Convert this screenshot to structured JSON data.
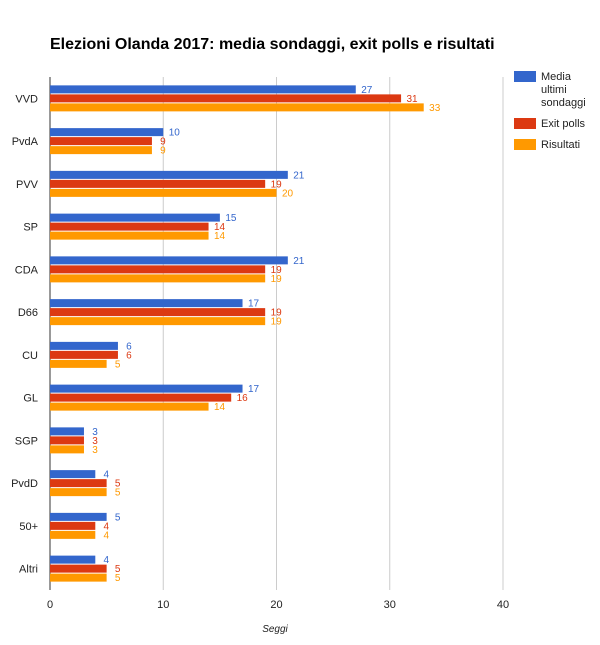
{
  "chart_data": {
    "type": "bar",
    "orientation": "horizontal",
    "title": "Elezioni Olanda 2017: media sondaggi, exit polls e risultati",
    "xlabel": "Seggi",
    "ylabel": "",
    "xlim": [
      0,
      40
    ],
    "x_ticks": [
      0,
      10,
      20,
      30,
      40
    ],
    "grid": true,
    "legend_position": "right",
    "categories": [
      "VVD",
      "PvdA",
      "PVV",
      "SP",
      "CDA",
      "D66",
      "CU",
      "GL",
      "SGP",
      "PvdD",
      "50+",
      "Altri"
    ],
    "series": [
      {
        "name": "Media ultimi sondaggi",
        "legend_lines": [
          "Media",
          "ultimi",
          "sondaggi"
        ],
        "color": "#3366cc",
        "values": [
          27,
          10,
          21,
          15,
          21,
          17,
          6,
          17,
          3,
          4,
          5,
          4
        ]
      },
      {
        "name": "Exit polls",
        "legend_lines": [
          "Exit polls"
        ],
        "color": "#dc3912",
        "values": [
          31,
          9,
          19,
          14,
          19,
          19,
          6,
          16,
          3,
          5,
          4,
          5
        ]
      },
      {
        "name": "Risultati",
        "legend_lines": [
          "Risultati"
        ],
        "color": "#ff9900",
        "values": [
          33,
          9,
          20,
          14,
          19,
          19,
          5,
          14,
          3,
          5,
          4,
          5
        ]
      }
    ]
  }
}
